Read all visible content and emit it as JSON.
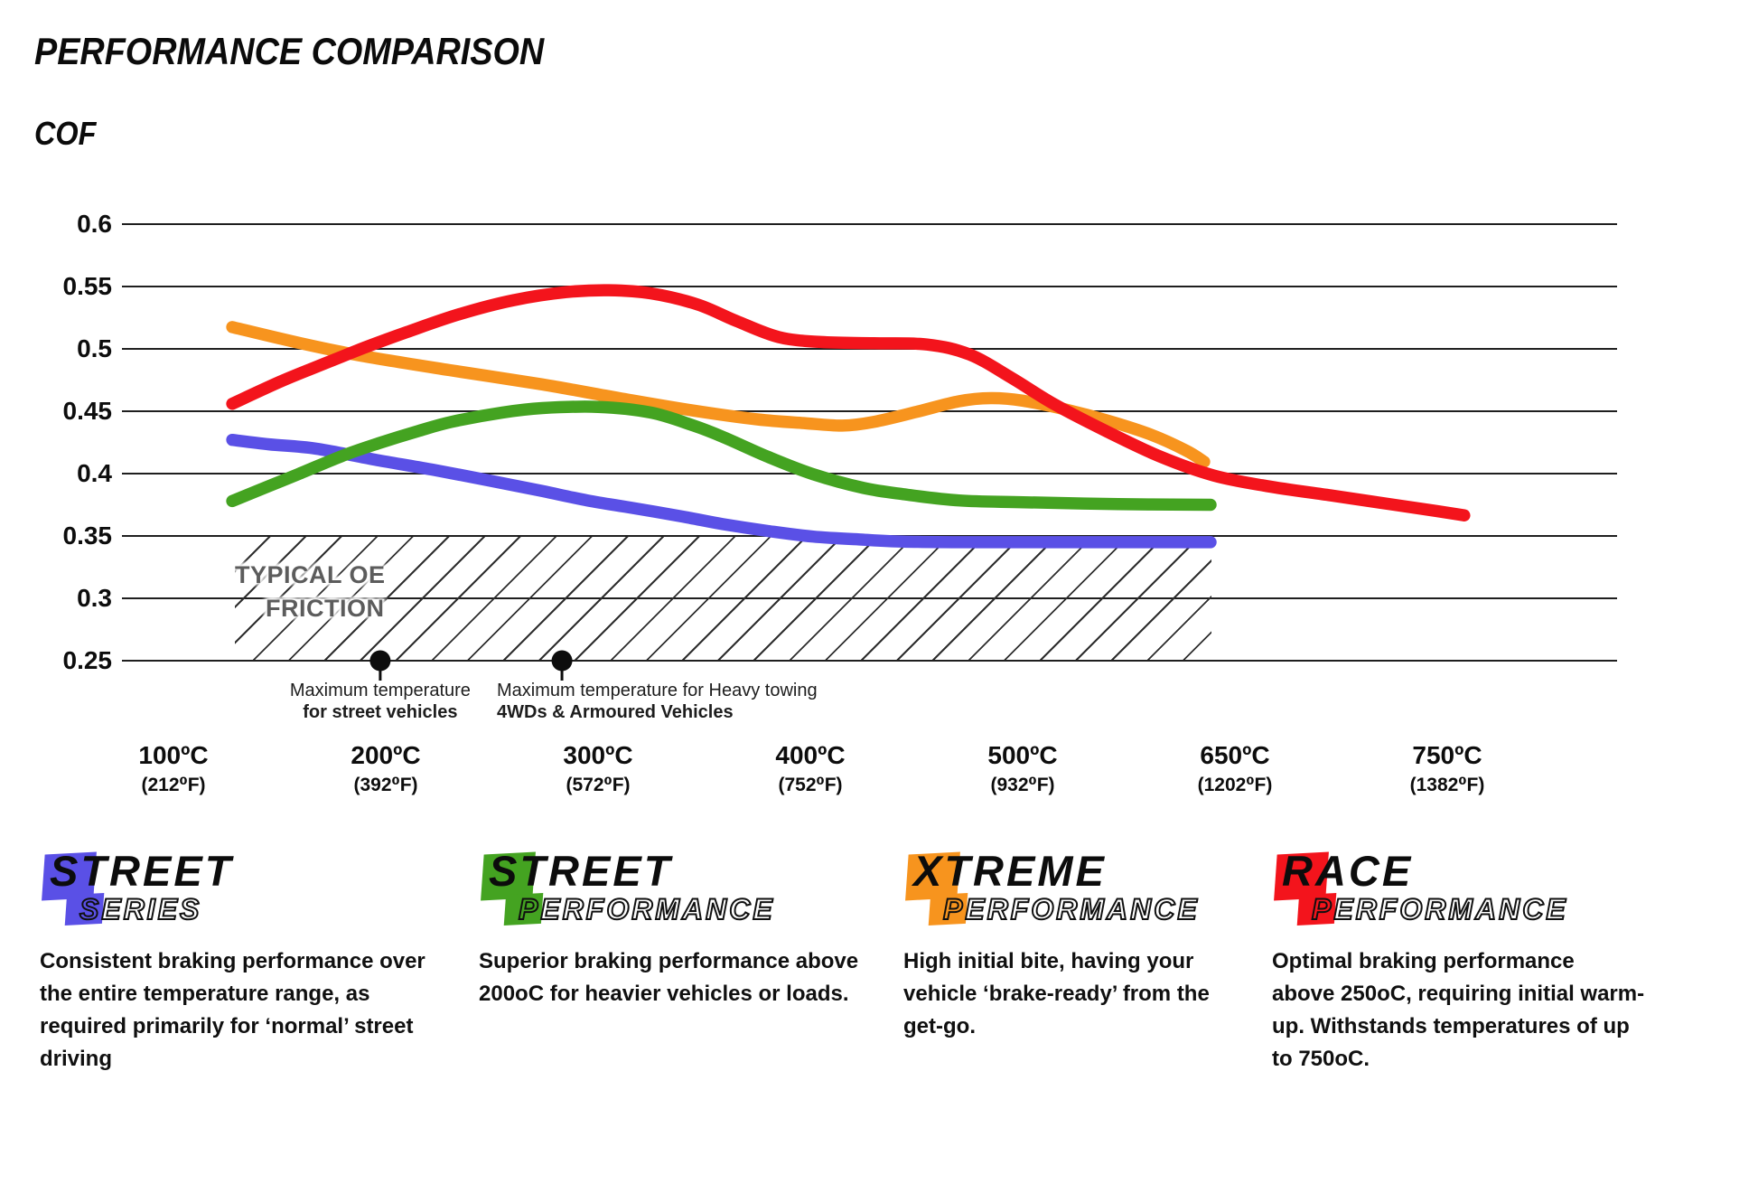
{
  "title": "PERFORMANCE COMPARISON",
  "y_axis_label": "COF",
  "chart_data": {
    "type": "line",
    "title": "PERFORMANCE COMPARISON",
    "ylabel": "COF",
    "grid": "horizontal",
    "y_ticks": [
      0.6,
      0.55,
      0.5,
      0.45,
      0.4,
      0.35,
      0.3,
      0.25
    ],
    "ylim": [
      0.25,
      0.6
    ],
    "x_ticks": [
      {
        "celsius": "100ºC",
        "fahrenheit": "(212⁰F)"
      },
      {
        "celsius": "200ºC",
        "fahrenheit": "(392⁰F)"
      },
      {
        "celsius": "300ºC",
        "fahrenheit": "(572⁰F)"
      },
      {
        "celsius": "400ºC",
        "fahrenheit": "(752⁰F)"
      },
      {
        "celsius": "500ºC",
        "fahrenheit": "(932⁰F)"
      },
      {
        "celsius": "650ºC",
        "fahrenheit": "(1202⁰F)"
      },
      {
        "celsius": "750ºC",
        "fahrenheit": "(1382⁰F)"
      }
    ],
    "x_axis_note": "points use x in tick-slot units: 0=100ºC slot, 1=200ºC ... 5=650ºC, 6=750ºC",
    "series": [
      {
        "key": "street-series",
        "name": "Street Series",
        "color": "#5a50e6",
        "points": [
          [
            0.277,
            0.427
          ],
          [
            0.45,
            0.4235
          ],
          [
            0.672,
            0.42
          ],
          [
            0.97,
            0.4105
          ],
          [
            1.226,
            0.403
          ],
          [
            1.5,
            0.394
          ],
          [
            1.737,
            0.386
          ],
          [
            1.95,
            0.3785
          ],
          [
            2.162,
            0.3725
          ],
          [
            2.4,
            0.3655
          ],
          [
            2.587,
            0.3595
          ],
          [
            2.8,
            0.354
          ],
          [
            3.013,
            0.3495
          ],
          [
            3.25,
            0.347
          ],
          [
            3.438,
            0.3455
          ],
          [
            3.7,
            0.345
          ],
          [
            4.1,
            0.345
          ],
          [
            4.5,
            0.345
          ],
          [
            4.885,
            0.345
          ]
        ]
      },
      {
        "key": "xtreme-performance",
        "name": "Xtreme Performance",
        "color": "#f7941e",
        "points": [
          [
            0.277,
            0.5175
          ],
          [
            0.6,
            0.5045
          ],
          [
            0.885,
            0.4945
          ],
          [
            1.3,
            0.483
          ],
          [
            1.737,
            0.4715
          ],
          [
            2.1,
            0.4605
          ],
          [
            2.45,
            0.4505
          ],
          [
            2.75,
            0.4435
          ],
          [
            2.97,
            0.4405
          ],
          [
            3.15,
            0.4385
          ],
          [
            3.3,
            0.4415
          ],
          [
            3.5,
            0.4495
          ],
          [
            3.7,
            0.458
          ],
          [
            3.85,
            0.4605
          ],
          [
            4.0,
            0.4585
          ],
          [
            4.2,
            0.4515
          ],
          [
            4.4,
            0.4425
          ],
          [
            4.6,
            0.4315
          ],
          [
            4.77,
            0.4185
          ],
          [
            4.855,
            0.4095
          ]
        ]
      },
      {
        "key": "street-performance",
        "name": "Street Performance",
        "color": "#44a321",
        "points": [
          [
            0.277,
            0.378
          ],
          [
            0.45,
            0.39
          ],
          [
            0.587,
            0.3995
          ],
          [
            0.8,
            0.4145
          ],
          [
            0.97,
            0.4245
          ],
          [
            1.15,
            0.434
          ],
          [
            1.311,
            0.4415
          ],
          [
            1.55,
            0.449
          ],
          [
            1.737,
            0.4525
          ],
          [
            2.0,
            0.4535
          ],
          [
            2.247,
            0.449
          ],
          [
            2.45,
            0.4385
          ],
          [
            2.587,
            0.4295
          ],
          [
            2.8,
            0.4135
          ],
          [
            3.013,
            0.3995
          ],
          [
            3.25,
            0.3885
          ],
          [
            3.438,
            0.3835
          ],
          [
            3.7,
            0.3785
          ],
          [
            4.004,
            0.377
          ],
          [
            4.45,
            0.3755
          ],
          [
            4.885,
            0.375
          ]
        ]
      },
      {
        "key": "race-performance",
        "name": "Race Performance",
        "color": "#f3141c",
        "points": [
          [
            0.277,
            0.456
          ],
          [
            0.5,
            0.4735
          ],
          [
            0.672,
            0.4855
          ],
          [
            0.9,
            0.501
          ],
          [
            1.1,
            0.5135
          ],
          [
            1.35,
            0.528
          ],
          [
            1.6,
            0.539
          ],
          [
            1.85,
            0.5455
          ],
          [
            2.05,
            0.547
          ],
          [
            2.25,
            0.5445
          ],
          [
            2.47,
            0.5355
          ],
          [
            2.65,
            0.5225
          ],
          [
            2.85,
            0.5095
          ],
          [
            3.05,
            0.5055
          ],
          [
            3.3,
            0.5045
          ],
          [
            3.55,
            0.5035
          ],
          [
            3.75,
            0.4955
          ],
          [
            3.95,
            0.4765
          ],
          [
            4.15,
            0.4555
          ],
          [
            4.4,
            0.4335
          ],
          [
            4.65,
            0.4135
          ],
          [
            4.9,
            0.3985
          ],
          [
            5.15,
            0.39
          ],
          [
            5.45,
            0.3825
          ],
          [
            5.75,
            0.375
          ],
          [
            5.95,
            0.37
          ],
          [
            6.08,
            0.3665
          ]
        ]
      }
    ],
    "oe_band": {
      "label_line1": "TYPICAL OE",
      "label_line2": "FRICTION",
      "cof_top": 0.35,
      "cof_bottom": 0.25,
      "u_left": 0.289,
      "u_right": 4.889
    },
    "annotations": [
      {
        "u": 0.974,
        "cof": 0.25,
        "line1": "Maximum temperature",
        "line2": "for street vehicles"
      },
      {
        "u": 1.83,
        "cof": 0.25,
        "line1": "Maximum temperature for Heavy towing",
        "line2": "4WDs & Armoured Vehicles"
      }
    ]
  },
  "legend": [
    {
      "word1": "STREET",
      "word2": "SERIES",
      "color": "#5a50e6",
      "desc_lines": [
        "Consistent braking performance over",
        "the entire temperature range, as",
        "required primarily for ‘normal’ street",
        "driving"
      ]
    },
    {
      "word1": "STREET",
      "word2": "PERFORMANCE",
      "color": "#44a321",
      "desc_lines": [
        "Superior braking performance above",
        "200oC for heavier vehicles or loads."
      ]
    },
    {
      "word1": "XTREME",
      "word2": "PERFORMANCE",
      "color": "#f7941e",
      "desc_lines": [
        "High initial bite, having your",
        "vehicle ‘brake-ready’ from the",
        "get-go."
      ]
    },
    {
      "word1": "RACE",
      "word2": "PERFORMANCE",
      "color": "#f3141c",
      "desc_lines": [
        "Optimal braking performance",
        "above 250oC, requiring initial warm-",
        "up. Withstands temperatures of up",
        "to 750oC."
      ]
    }
  ],
  "colors": {
    "grid": "#1f1f1f",
    "dot": "#0d0d0d",
    "oe_text": "#5c5c5c"
  }
}
